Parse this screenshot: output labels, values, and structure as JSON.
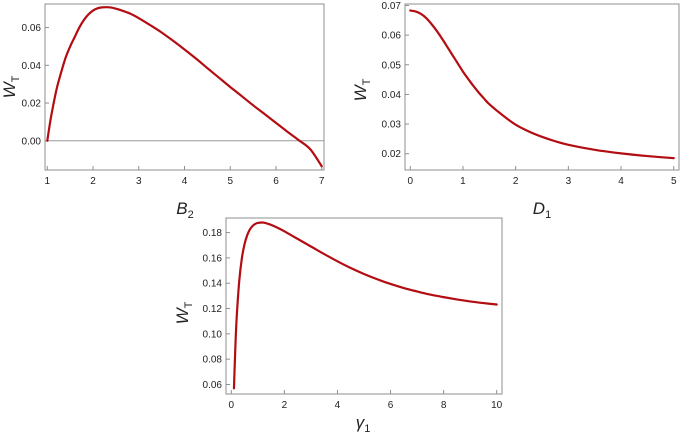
{
  "colors": {
    "curve": "#b30d12",
    "frame": "#8f8f8f",
    "zero_line": "#9a9a9a"
  },
  "chart_data": [
    {
      "type": "line",
      "xlabel": "B",
      "xlabel_sub": "2",
      "ylabel": "W",
      "ylabel_sub": "T",
      "xlim": [
        0.95,
        7.05
      ],
      "ylim": [
        -0.0155,
        0.0725
      ],
      "xticks": [
        1,
        2,
        3,
        4,
        5,
        6,
        7
      ],
      "xtick_labels": [
        "1",
        "2",
        "3",
        "4",
        "5",
        "6",
        "7"
      ],
      "yticks": [
        0.0,
        0.02,
        0.04,
        0.06
      ],
      "ytick_labels": [
        "0.00",
        "0.02",
        "0.04",
        "0.06"
      ],
      "reference_line_y": 0,
      "series": [
        {
          "x": [
            1.0,
            1.05,
            1.1,
            1.2,
            1.3,
            1.4,
            1.5,
            1.6,
            1.7,
            1.8,
            1.9,
            2.0,
            2.1,
            2.2,
            2.3,
            2.4,
            2.5,
            2.6,
            2.8,
            3.0,
            3.25,
            3.5,
            3.75,
            4.0,
            4.25,
            4.5,
            4.75,
            5.0,
            5.25,
            5.5,
            5.75,
            6.0,
            6.25,
            6.5,
            6.75,
            7.0
          ],
          "y": [
            0.0,
            0.008,
            0.015,
            0.027,
            0.036,
            0.044,
            0.05,
            0.055,
            0.06,
            0.064,
            0.067,
            0.069,
            0.0702,
            0.0707,
            0.0708,
            0.0706,
            0.07,
            0.0693,
            0.0675,
            0.065,
            0.0613,
            0.0574,
            0.053,
            0.0484,
            0.0436,
            0.0385,
            0.0335,
            0.0285,
            0.0237,
            0.0188,
            0.0142,
            0.0095,
            0.0048,
            0.0003,
            -0.0045,
            -0.0135
          ]
        }
      ]
    },
    {
      "type": "line",
      "xlabel": "D",
      "xlabel_sub": "1",
      "ylabel": "W",
      "ylabel_sub": "T",
      "xlim": [
        -0.1,
        5.1
      ],
      "ylim": [
        0.0145,
        0.0705
      ],
      "xticks": [
        0,
        1,
        2,
        3,
        4,
        5
      ],
      "xtick_labels": [
        "0",
        "1",
        "2",
        "3",
        "4",
        "5"
      ],
      "yticks": [
        0.02,
        0.03,
        0.04,
        0.05,
        0.06,
        0.07
      ],
      "ytick_labels": [
        "0.02",
        "0.03",
        "0.04",
        "0.05",
        "0.06",
        "0.07"
      ],
      "series": [
        {
          "x": [
            0.0,
            0.1,
            0.2,
            0.3,
            0.4,
            0.5,
            0.6,
            0.7,
            0.8,
            0.9,
            1.0,
            1.1,
            1.2,
            1.3,
            1.4,
            1.5,
            1.75,
            2.0,
            2.25,
            2.5,
            2.75,
            3.0,
            3.5,
            4.0,
            4.5,
            5.0
          ],
          "y": [
            0.0683,
            0.068,
            0.0672,
            0.0658,
            0.0638,
            0.0615,
            0.0589,
            0.0561,
            0.0533,
            0.0505,
            0.0477,
            0.0452,
            0.0428,
            0.0406,
            0.0386,
            0.0367,
            0.033,
            0.0298,
            0.0275,
            0.0257,
            0.0242,
            0.023,
            0.0213,
            0.0201,
            0.0192,
            0.0185
          ]
        }
      ]
    },
    {
      "type": "line",
      "xlabel": "γ",
      "xlabel_sub": "1",
      "ylabel": "W",
      "ylabel_sub": "T",
      "xlim": [
        -0.2,
        10.2
      ],
      "ylim": [
        0.0525,
        0.1915
      ],
      "xticks": [
        0,
        2,
        4,
        6,
        8,
        10
      ],
      "xtick_labels": [
        "0",
        "2",
        "4",
        "6",
        "8",
        "10"
      ],
      "yticks": [
        0.06,
        0.08,
        0.1,
        0.12,
        0.14,
        0.16,
        0.18
      ],
      "ytick_labels": [
        "0.06",
        "0.08",
        "0.10",
        "0.12",
        "0.14",
        "0.16",
        "0.18"
      ],
      "series": [
        {
          "x": [
            0.1,
            0.15,
            0.2,
            0.3,
            0.4,
            0.5,
            0.6,
            0.7,
            0.8,
            0.9,
            1.0,
            1.2,
            1.4,
            1.6,
            1.8,
            2.0,
            2.5,
            3.0,
            3.5,
            4.0,
            4.5,
            5.0,
            5.5,
            6.0,
            6.5,
            7.0,
            7.5,
            8.0,
            8.5,
            9.0,
            9.5,
            10.0
          ],
          "y": [
            0.057,
            0.088,
            0.112,
            0.142,
            0.16,
            0.171,
            0.178,
            0.1825,
            0.1852,
            0.1868,
            0.1876,
            0.1879,
            0.1868,
            0.1852,
            0.1832,
            0.181,
            0.175,
            0.169,
            0.163,
            0.1573,
            0.152,
            0.1473,
            0.1431,
            0.1394,
            0.1362,
            0.1335,
            0.131,
            0.129,
            0.1272,
            0.1256,
            0.1243,
            0.1232
          ]
        }
      ]
    }
  ]
}
